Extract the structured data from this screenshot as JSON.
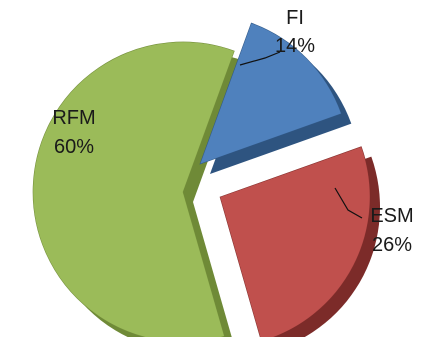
{
  "chart_data": {
    "type": "pie",
    "style": "3d-exploded",
    "slices": [
      {
        "label": "FI",
        "value": 14,
        "value_label": "14%",
        "color": "#4f81bd",
        "dark": "#2e5480"
      },
      {
        "label": "ESM",
        "value": 26,
        "value_label": "26%",
        "color": "#c0504d",
        "dark": "#7c2b29"
      },
      {
        "label": "RFM",
        "value": 60,
        "value_label": "60%",
        "color": "#9bbb59",
        "dark": "#6f8a37"
      }
    ],
    "legend": "none"
  }
}
